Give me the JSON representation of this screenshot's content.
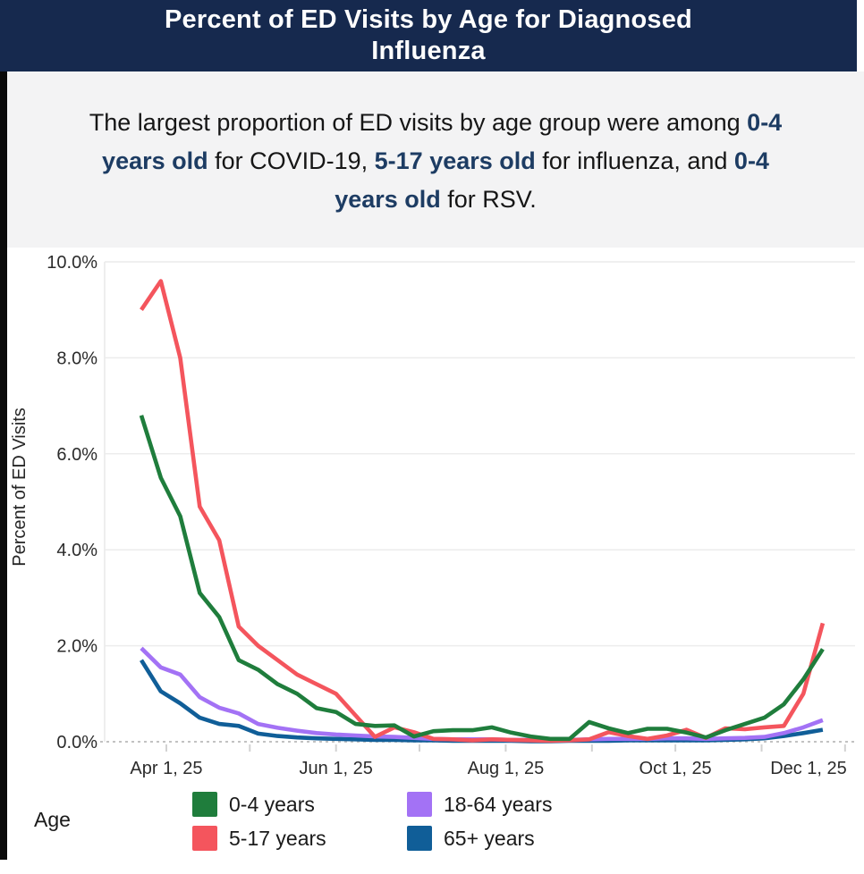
{
  "header": {
    "title_lines": [
      "Percent of ED Visits by Age for Diagnosed",
      "Influenza"
    ]
  },
  "subtitle": {
    "lines": [
      [
        {
          "t": "The largest proportion of ED visits by age group were among ",
          "b": 0
        },
        {
          "t": "0-4",
          "b": 1
        }
      ],
      [
        {
          "t": "years old",
          "b": 1
        },
        {
          "t": " for COVID-19, ",
          "b": 0
        },
        {
          "t": "5-17 years old",
          "b": 1
        },
        {
          "t": " for influenza, and ",
          "b": 0
        },
        {
          "t": "0-4",
          "b": 1
        }
      ],
      [
        {
          "t": "years old",
          "b": 1
        },
        {
          "t": " for RSV.",
          "b": 0
        }
      ]
    ]
  },
  "colors": {
    "header_bg": "#16294e",
    "accent_text": "#1d3c63",
    "grid": "#ececec",
    "zero_line": "#c2c2c2",
    "tick": "#d2d2d2",
    "plot_edge": "#e8e8e8"
  },
  "legend": {
    "label": "Age"
  },
  "chart_data": {
    "type": "line",
    "title": "Percent of ED Visits by Age for Diagnosed Influenza",
    "xlabel": "",
    "ylabel": "Percent of ED Visits",
    "ylim": [
      0,
      10
    ],
    "grid": true,
    "legend_position": "bottom",
    "y_ticks": [
      {
        "v": 0,
        "label": "0.0%"
      },
      {
        "v": 2,
        "label": "2.0%"
      },
      {
        "v": 4,
        "label": "4.0%"
      },
      {
        "v": 6,
        "label": "6.0%"
      },
      {
        "v": 8,
        "label": "8.0%"
      },
      {
        "v": 10,
        "label": "10.0%"
      }
    ],
    "x_ticks": [
      {
        "date": "2025-04-01",
        "label": "Apr 1, 25"
      },
      {
        "date": "2025-05-01",
        "label": ""
      },
      {
        "date": "2025-06-01",
        "label": "Jun 1, 25"
      },
      {
        "date": "2025-07-01",
        "label": ""
      },
      {
        "date": "2025-08-01",
        "label": "Aug 1, 25"
      },
      {
        "date": "2025-09-01",
        "label": ""
      },
      {
        "date": "2025-10-01",
        "label": "Oct 1, 25"
      },
      {
        "date": "2025-11-01",
        "label": ""
      },
      {
        "date": "2025-12-01",
        "label": "Dec 1, 25"
      }
    ],
    "x": [
      "2025-03-23",
      "2025-03-30",
      "2025-04-06",
      "2025-04-13",
      "2025-04-20",
      "2025-04-27",
      "2025-05-04",
      "2025-05-11",
      "2025-05-18",
      "2025-05-25",
      "2025-06-01",
      "2025-06-08",
      "2025-06-15",
      "2025-06-22",
      "2025-06-29",
      "2025-07-06",
      "2025-07-13",
      "2025-07-20",
      "2025-07-27",
      "2025-08-03",
      "2025-08-10",
      "2025-08-17",
      "2025-08-24",
      "2025-08-31",
      "2025-09-07",
      "2025-09-14",
      "2025-09-21",
      "2025-09-28",
      "2025-10-05",
      "2025-10-12",
      "2025-10-19",
      "2025-10-26",
      "2025-11-02",
      "2025-11-09",
      "2025-11-16",
      "2025-11-23"
    ],
    "series": [
      {
        "name": "0-4 years",
        "color": "#1f7d3c",
        "values": [
          6.8,
          5.5,
          4.7,
          3.1,
          2.6,
          1.7,
          1.5,
          1.2,
          1.0,
          0.7,
          0.62,
          0.37,
          0.33,
          0.34,
          0.11,
          0.22,
          0.24,
          0.24,
          0.3,
          0.19,
          0.11,
          0.06,
          0.06,
          0.41,
          0.28,
          0.18,
          0.27,
          0.27,
          0.19,
          0.09,
          0.24,
          0.37,
          0.5,
          0.78,
          1.3,
          1.93
        ]
      },
      {
        "name": "5-17 years",
        "color": "#f4555d",
        "values": [
          9.0,
          9.6,
          8.0,
          4.9,
          4.2,
          2.4,
          2.0,
          1.7,
          1.4,
          1.2,
          1.0,
          0.55,
          0.1,
          0.3,
          0.2,
          0.06,
          0.05,
          0.03,
          0.05,
          0.04,
          0.03,
          0.02,
          0.03,
          0.05,
          0.2,
          0.12,
          0.06,
          0.13,
          0.25,
          0.08,
          0.28,
          0.26,
          0.3,
          0.33,
          1.0,
          2.47
        ]
      },
      {
        "name": "18-64 years",
        "color": "#a372f5",
        "values": [
          1.95,
          1.55,
          1.4,
          0.93,
          0.71,
          0.59,
          0.37,
          0.29,
          0.23,
          0.18,
          0.15,
          0.13,
          0.11,
          0.1,
          0.08,
          0.06,
          0.05,
          0.05,
          0.05,
          0.04,
          0.04,
          0.03,
          0.04,
          0.05,
          0.06,
          0.06,
          0.06,
          0.07,
          0.07,
          0.06,
          0.07,
          0.08,
          0.1,
          0.18,
          0.3,
          0.45
        ]
      },
      {
        "name": "65+ years",
        "color": "#105e98",
        "values": [
          1.7,
          1.05,
          0.8,
          0.5,
          0.37,
          0.33,
          0.17,
          0.12,
          0.09,
          0.07,
          0.06,
          0.05,
          0.04,
          0.04,
          0.03,
          0.03,
          0.02,
          0.02,
          0.02,
          0.02,
          0.01,
          0.01,
          0.02,
          0.02,
          0.02,
          0.03,
          0.03,
          0.03,
          0.03,
          0.03,
          0.04,
          0.05,
          0.07,
          0.12,
          0.18,
          0.25
        ]
      }
    ]
  }
}
